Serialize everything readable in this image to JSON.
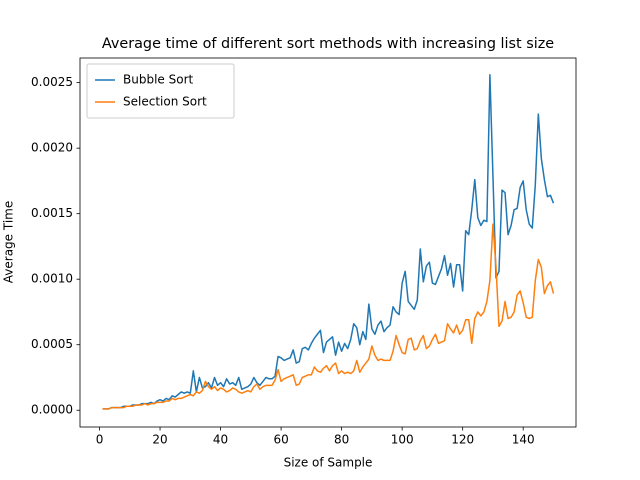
{
  "chart_data": {
    "type": "line",
    "title": "Average time of different sort methods with increasing list size",
    "x_label": "Size of Sample",
    "y_label": "Average Time",
    "legend": "upper left",
    "x": [
      1,
      2,
      3,
      4,
      5,
      6,
      7,
      8,
      9,
      10,
      11,
      12,
      13,
      14,
      15,
      16,
      17,
      18,
      19,
      20,
      21,
      22,
      23,
      24,
      25,
      26,
      27,
      28,
      29,
      30,
      31,
      32,
      33,
      34,
      35,
      36,
      37,
      38,
      39,
      40,
      41,
      42,
      43,
      44,
      45,
      46,
      47,
      48,
      49,
      50,
      51,
      52,
      53,
      54,
      55,
      56,
      57,
      58,
      59,
      60,
      61,
      62,
      63,
      64,
      65,
      66,
      67,
      68,
      69,
      70,
      71,
      72,
      73,
      74,
      75,
      76,
      77,
      78,
      79,
      80,
      81,
      82,
      83,
      84,
      85,
      86,
      87,
      88,
      89,
      90,
      91,
      92,
      93,
      94,
      95,
      96,
      97,
      98,
      99,
      100,
      101,
      102,
      103,
      104,
      105,
      106,
      107,
      108,
      109,
      110,
      111,
      112,
      113,
      114,
      115,
      116,
      117,
      118,
      119,
      120,
      121,
      122,
      123,
      124,
      125,
      126,
      127,
      128,
      129,
      130,
      131,
      132,
      133,
      134,
      135,
      136,
      137,
      138,
      139,
      140,
      141,
      142,
      143,
      144,
      145,
      146,
      147,
      148,
      149,
      150
    ],
    "series": [
      {
        "name": "Bubble Sort",
        "color": "#1f77b4",
        "values": [
          1e-05,
          1e-05,
          1e-05,
          2e-05,
          2e-05,
          2e-05,
          2e-05,
          3e-05,
          3e-05,
          3e-05,
          4e-05,
          4e-05,
          4e-05,
          5e-05,
          5e-05,
          5e-05,
          6e-05,
          5e-05,
          7e-05,
          8e-05,
          7e-05,
          9e-05,
          8e-05,
          0.00011,
          0.0001,
          0.00012,
          0.00014,
          0.00013,
          0.00014,
          0.00013,
          0.0003,
          0.00014,
          0.00025,
          0.00017,
          0.00018,
          0.00021,
          0.00017,
          0.00025,
          0.00019,
          0.00021,
          0.00018,
          0.00024,
          0.0002,
          0.00021,
          0.00019,
          0.00025,
          0.00016,
          0.00017,
          0.00018,
          0.0002,
          0.00025,
          0.00021,
          0.00019,
          0.00022,
          0.00025,
          0.00024,
          0.00024,
          0.00026,
          0.00041,
          0.0004,
          0.00038,
          0.00039,
          0.0004,
          0.00046,
          0.00036,
          0.00037,
          0.00047,
          0.00048,
          0.00046,
          0.00051,
          0.00055,
          0.00058,
          0.00061,
          0.00044,
          0.00052,
          0.00054,
          0.00056,
          0.00042,
          0.00052,
          0.00045,
          0.00051,
          0.00047,
          0.00054,
          0.00066,
          0.00063,
          0.0005,
          0.0006,
          0.00054,
          0.00081,
          0.00062,
          0.00058,
          0.00065,
          0.00068,
          0.0006,
          0.00063,
          0.00065,
          0.00079,
          0.00075,
          0.00073,
          0.00097,
          0.00106,
          0.00083,
          0.0008,
          0.00077,
          0.00084,
          0.00123,
          0.00098,
          0.0011,
          0.00113,
          0.00097,
          0.00096,
          0.00102,
          0.00108,
          0.00118,
          0.00103,
          0.00112,
          0.00094,
          0.00111,
          0.00111,
          0.00091,
          0.00137,
          0.00134,
          0.00153,
          0.00176,
          0.00147,
          0.00141,
          0.00145,
          0.00144,
          0.00256,
          0.00179,
          0.00101,
          0.00106,
          0.00168,
          0.00166,
          0.00134,
          0.00141,
          0.00153,
          0.00154,
          0.0017,
          0.00175,
          0.00153,
          0.00142,
          0.00139,
          0.00172,
          0.00226,
          0.00192,
          0.00176,
          0.00163,
          0.00164,
          0.00158
        ]
      },
      {
        "name": "Selection Sort",
        "color": "#ff7f0e",
        "values": [
          1e-05,
          1e-05,
          1e-05,
          2e-05,
          2e-05,
          2e-05,
          2e-05,
          2e-05,
          3e-05,
          3e-05,
          3e-05,
          4e-05,
          4e-05,
          4e-05,
          5e-05,
          4e-05,
          5e-05,
          5e-05,
          6e-05,
          6e-05,
          6e-05,
          7e-05,
          7e-05,
          9e-05,
          8e-05,
          9e-05,
          9e-05,
          0.0001,
          0.00011,
          0.00012,
          0.00011,
          0.00014,
          0.00013,
          0.00015,
          0.00022,
          0.00018,
          0.00016,
          0.00018,
          0.00015,
          0.00017,
          0.00016,
          0.00014,
          0.00015,
          0.00017,
          0.00016,
          0.00014,
          0.00013,
          0.00014,
          0.00015,
          0.00014,
          0.00018,
          0.0002,
          0.00016,
          0.00018,
          0.00019,
          0.00019,
          0.00019,
          0.00023,
          0.00031,
          0.00022,
          0.00024,
          0.00025,
          0.00026,
          0.00027,
          0.00019,
          0.0002,
          0.00025,
          0.00026,
          0.00027,
          0.00027,
          0.00033,
          0.0003,
          0.00029,
          0.00032,
          0.00034,
          0.0003,
          0.00034,
          0.00036,
          0.00028,
          0.0003,
          0.00028,
          0.00029,
          0.00028,
          0.0003,
          0.00038,
          0.00029,
          0.00033,
          0.00036,
          0.00039,
          0.00049,
          0.00042,
          0.00038,
          0.00039,
          0.00038,
          0.00038,
          0.00038,
          0.00045,
          0.00057,
          0.0005,
          0.00044,
          0.00043,
          0.00054,
          0.00055,
          0.00046,
          0.00047,
          0.00053,
          0.00057,
          0.00047,
          0.00049,
          0.00054,
          0.00058,
          0.00051,
          0.00052,
          0.00053,
          0.00066,
          0.00062,
          0.00059,
          0.00065,
          0.00058,
          0.00061,
          0.00069,
          0.00069,
          0.00051,
          0.0007,
          0.00075,
          0.00072,
          0.00075,
          0.00083,
          0.00099,
          0.00142,
          0.0011,
          0.00064,
          0.00068,
          0.00083,
          0.0007,
          0.00071,
          0.00075,
          0.00088,
          0.00091,
          0.00082,
          0.00071,
          0.0007,
          0.00071,
          0.00099,
          0.00115,
          0.00109,
          0.00089,
          0.00095,
          0.00098,
          0.00089
        ]
      }
    ],
    "xlim": [
      -6.45,
      157.45
    ],
    "xticks": [
      0,
      20,
      40,
      60,
      80,
      100,
      120,
      140
    ],
    "ylim": [
      -0.000128,
      0.002688
    ],
    "yticks": [
      {
        "value": 0,
        "label": "0.0000"
      },
      {
        "value": 0.0005,
        "label": "0.0005"
      },
      {
        "value": 0.001,
        "label": "0.0010"
      },
      {
        "value": 0.0015,
        "label": "0.0015"
      },
      {
        "value": 0.002,
        "label": "0.0020"
      },
      {
        "value": 0.0025,
        "label": "0.0025"
      }
    ]
  }
}
